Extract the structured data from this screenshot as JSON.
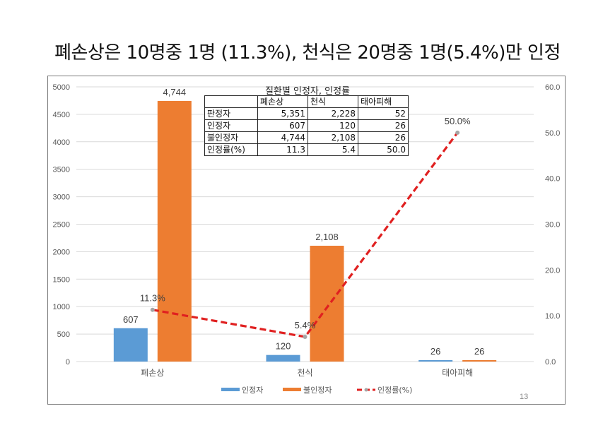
{
  "slide": {
    "title": "폐손상은 10명중 1명 (11.3%), 천식은 20명중 1명(5.4%)만 인정",
    "page_number": "13"
  },
  "chart_data": {
    "type": "bar",
    "title": "",
    "categories": [
      "폐손상",
      "천식",
      "태아피해"
    ],
    "series": [
      {
        "name": "인정자",
        "kind": "bar",
        "axis": "left",
        "color": "#5B9BD5",
        "values": [
          607,
          120,
          26
        ],
        "labels": [
          "607",
          "120",
          "26"
        ]
      },
      {
        "name": "불인정자",
        "kind": "bar",
        "axis": "left",
        "color": "#ED7D31",
        "values": [
          4744,
          2108,
          26
        ],
        "labels": [
          "4,744",
          "2,108",
          "26"
        ]
      },
      {
        "name": "인정률(%)",
        "kind": "line",
        "axis": "right",
        "color": "#E02020",
        "marker_color": "#A5A5A5",
        "style": "dashed",
        "values": [
          11.3,
          5.4,
          50.0
        ],
        "labels": [
          "11.3%",
          "5.4%",
          "50.0%"
        ]
      }
    ],
    "y_left": {
      "min": 0,
      "max": 5000,
      "step": 500,
      "ticks": [
        "0",
        "500",
        "1000",
        "1500",
        "2000",
        "2500",
        "3000",
        "3500",
        "4000",
        "4500",
        "5000"
      ]
    },
    "y_right": {
      "min": 0,
      "max": 60,
      "step": 10,
      "ticks": [
        "0.0",
        "10.0",
        "20.0",
        "30.0",
        "40.0",
        "50.0",
        "60.0"
      ]
    },
    "xlabel": "",
    "ylabel": "",
    "grid": true,
    "legend": {
      "position": "bottom",
      "entries": [
        "인정자",
        "불인정자",
        "인정률(%)"
      ]
    }
  },
  "table": {
    "title": "질환별 인정자, 인정률",
    "header": [
      "",
      "폐손상",
      "천식",
      "태아피해"
    ],
    "rows": [
      [
        "판정자",
        "5,351",
        "2,228",
        "52"
      ],
      [
        "인정자",
        "607",
        "120",
        "26"
      ],
      [
        "불인정자",
        "4,744",
        "2,108",
        "26"
      ],
      [
        "인정률(%)",
        "11.3",
        "5.4",
        "50.0"
      ]
    ]
  }
}
